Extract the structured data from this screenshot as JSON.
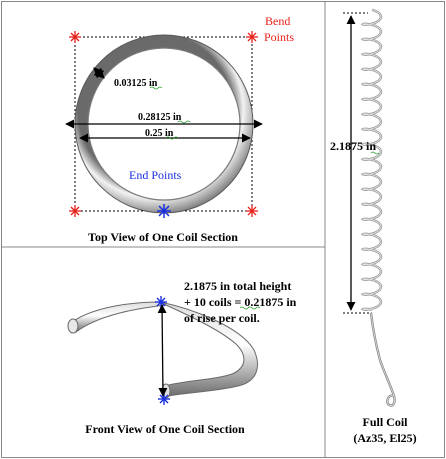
{
  "top_view": {
    "label_bend": "Bend",
    "label_points": "Points",
    "dim_wire": "0.03125",
    "dim_outer": "0.28125",
    "dim_inner": "0.25",
    "unit": "in",
    "label_end_points": "End Points",
    "caption": "Top View of One Coil Section"
  },
  "front_view": {
    "note_line1": "2.1875 in total height",
    "note_line2": "+ 10 coils = 0.21875 in",
    "note_line3": "of rise per coil.",
    "caption": "Front View of One Coil Section"
  },
  "full_coil": {
    "height_value": "2.1875",
    "unit": "in",
    "caption_line1": "Full Coil",
    "caption_line2": "(Az35, El25)"
  },
  "colors": {
    "bend_marker": "#e8201a",
    "end_marker": "#1a2fe0",
    "frame": "#888888",
    "coil_steel": "#9a9a9a"
  }
}
